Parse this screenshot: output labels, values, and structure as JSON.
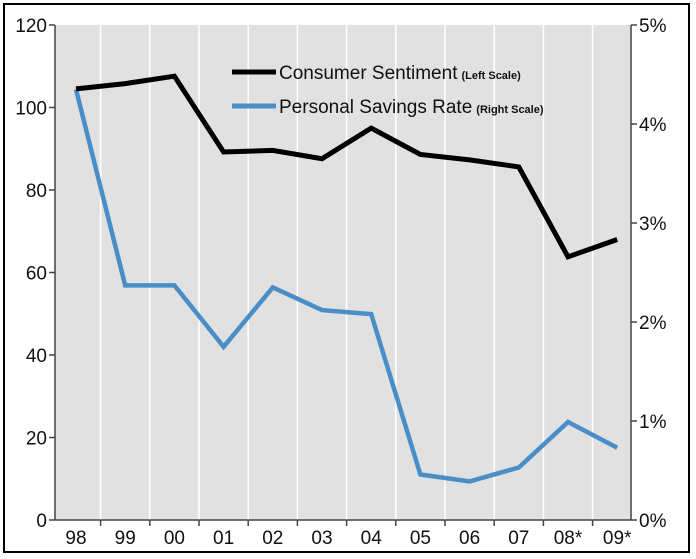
{
  "chart_data": {
    "type": "line",
    "categories": [
      "98",
      "99",
      "00",
      "01",
      "02",
      "03",
      "04",
      "05",
      "06",
      "07",
      "08*",
      "09*"
    ],
    "left_axis": {
      "ticks": [
        "0",
        "20",
        "40",
        "60",
        "80",
        "100",
        "120"
      ],
      "ylim": [
        0,
        120
      ]
    },
    "right_axis": {
      "ticks": [
        "0%",
        "1%",
        "2%",
        "3%",
        "4%",
        "5%"
      ],
      "ylim": [
        0,
        5
      ]
    },
    "series": [
      {
        "name": "Consumer Sentiment",
        "note": "(Left Scale)",
        "axis": "left",
        "color": "#000000",
        "values": [
          104.5,
          105.8,
          107.6,
          89.2,
          89.6,
          87.6,
          95.0,
          88.6,
          87.3,
          85.6,
          63.8,
          68.0
        ]
      },
      {
        "name": "Personal Savings Rate",
        "note": "(Right Scale)",
        "axis": "right",
        "color": "#4a8ec8",
        "values": [
          4.35,
          2.37,
          2.37,
          1.75,
          2.35,
          2.12,
          2.08,
          0.46,
          0.39,
          0.53,
          0.99,
          0.73
        ]
      }
    ],
    "plot_background": "#e1e1e1",
    "grid": "vertical",
    "legend_position": "top-right"
  }
}
